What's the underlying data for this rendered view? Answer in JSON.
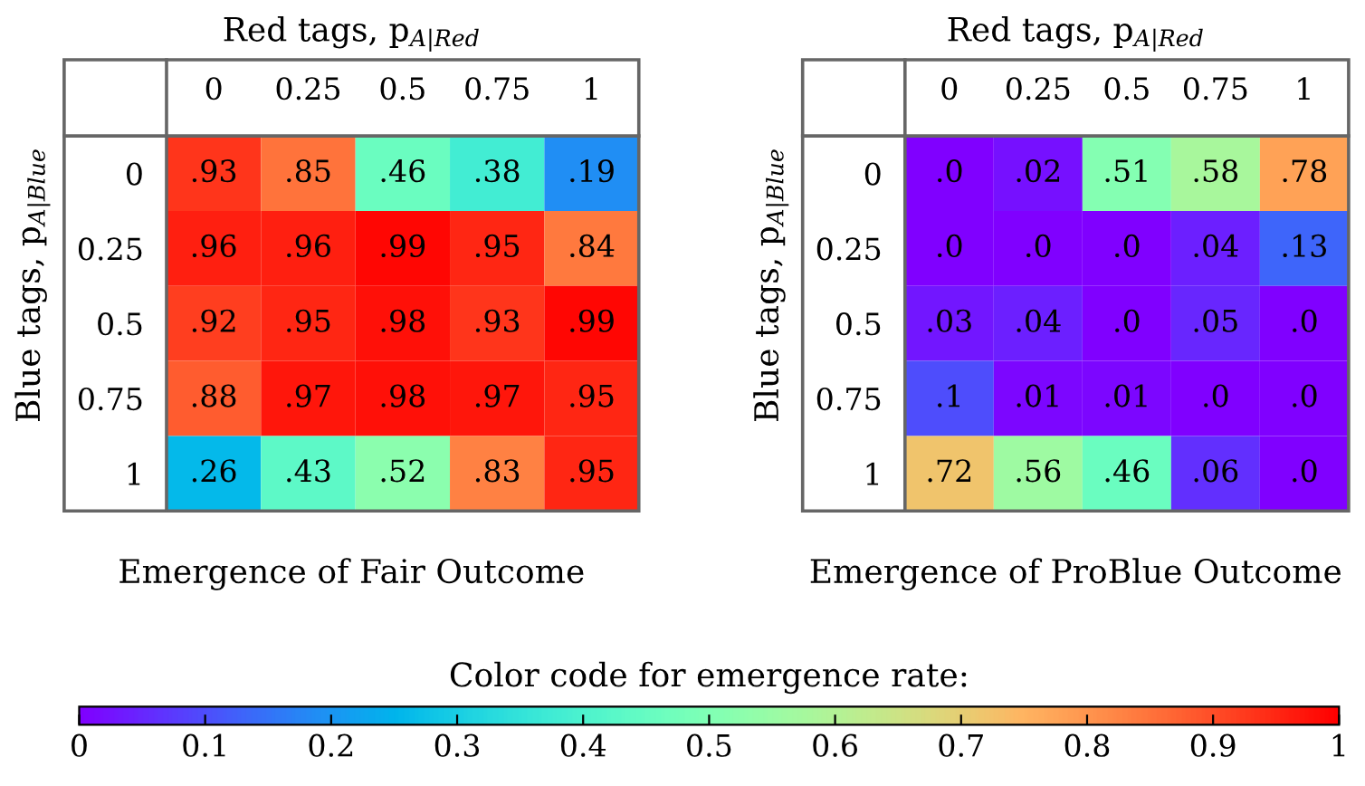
{
  "chart_data": [
    {
      "type": "heatmap",
      "title": "Emergence of Fair Outcome",
      "xlabel": "Red tags, p$_{A|Red}$",
      "ylabel": "Blue tags, p$_{A|Blue}$",
      "categories": [
        "0",
        "0.25",
        "0.5",
        "0.75",
        "1"
      ],
      "y_categories": [
        "0",
        "0.25",
        "0.5",
        "0.75",
        "1"
      ],
      "cells": [
        [
          0.93,
          0.85,
          0.46,
          0.38,
          0.19
        ],
        [
          0.96,
          0.96,
          0.99,
          0.95,
          0.84
        ],
        [
          0.92,
          0.95,
          0.98,
          0.93,
          0.99
        ],
        [
          0.88,
          0.97,
          0.98,
          0.97,
          0.95
        ],
        [
          0.26,
          0.43,
          0.52,
          0.83,
          0.95
        ]
      ],
      "cell_labels": [
        [
          ".93",
          ".85",
          ".46",
          ".38",
          ".19"
        ],
        [
          ".96",
          ".96",
          ".99",
          ".95",
          ".84"
        ],
        [
          ".92",
          ".95",
          ".98",
          ".93",
          ".99"
        ],
        [
          ".88",
          ".97",
          ".98",
          ".97",
          ".95"
        ],
        [
          ".26",
          ".43",
          ".52",
          ".83",
          ".95"
        ]
      ],
      "clim": [
        0,
        1
      ],
      "clabel": "Color code for emergence rate:",
      "cticks": [
        0,
        0.1,
        0.2,
        0.3,
        0.4,
        0.5,
        0.6,
        0.7,
        0.8,
        0.9,
        1
      ]
    },
    {
      "type": "heatmap",
      "title": "Emergence of ProBlue Outcome",
      "xlabel": "Red tags, p$_{A|Red}$",
      "ylabel": "Blue tags, p$_{A|Blue}$",
      "categories": [
        "0",
        "0.25",
        "0.5",
        "0.75",
        "1"
      ],
      "y_categories": [
        "0",
        "0.25",
        "0.5",
        "0.75",
        "1"
      ],
      "cells": [
        [
          0,
          0.02,
          0.51,
          0.58,
          0.78
        ],
        [
          0,
          0,
          0,
          0.04,
          0.13
        ],
        [
          0.03,
          0.04,
          0,
          0.05,
          0
        ],
        [
          0.1,
          0.01,
          0.01,
          0,
          0
        ],
        [
          0.72,
          0.56,
          0.46,
          0.06,
          0
        ]
      ],
      "cell_labels": [
        [
          ".0",
          ".02",
          ".51",
          ".58",
          ".78"
        ],
        [
          ".0",
          ".0",
          ".0",
          ".04",
          ".13"
        ],
        [
          ".03",
          ".04",
          ".0",
          ".05",
          ".0"
        ],
        [
          ".1",
          ".01",
          ".01",
          ".0",
          ".0"
        ],
        [
          ".72",
          ".56",
          ".46",
          ".06",
          ".0"
        ]
      ]
    }
  ]
}
